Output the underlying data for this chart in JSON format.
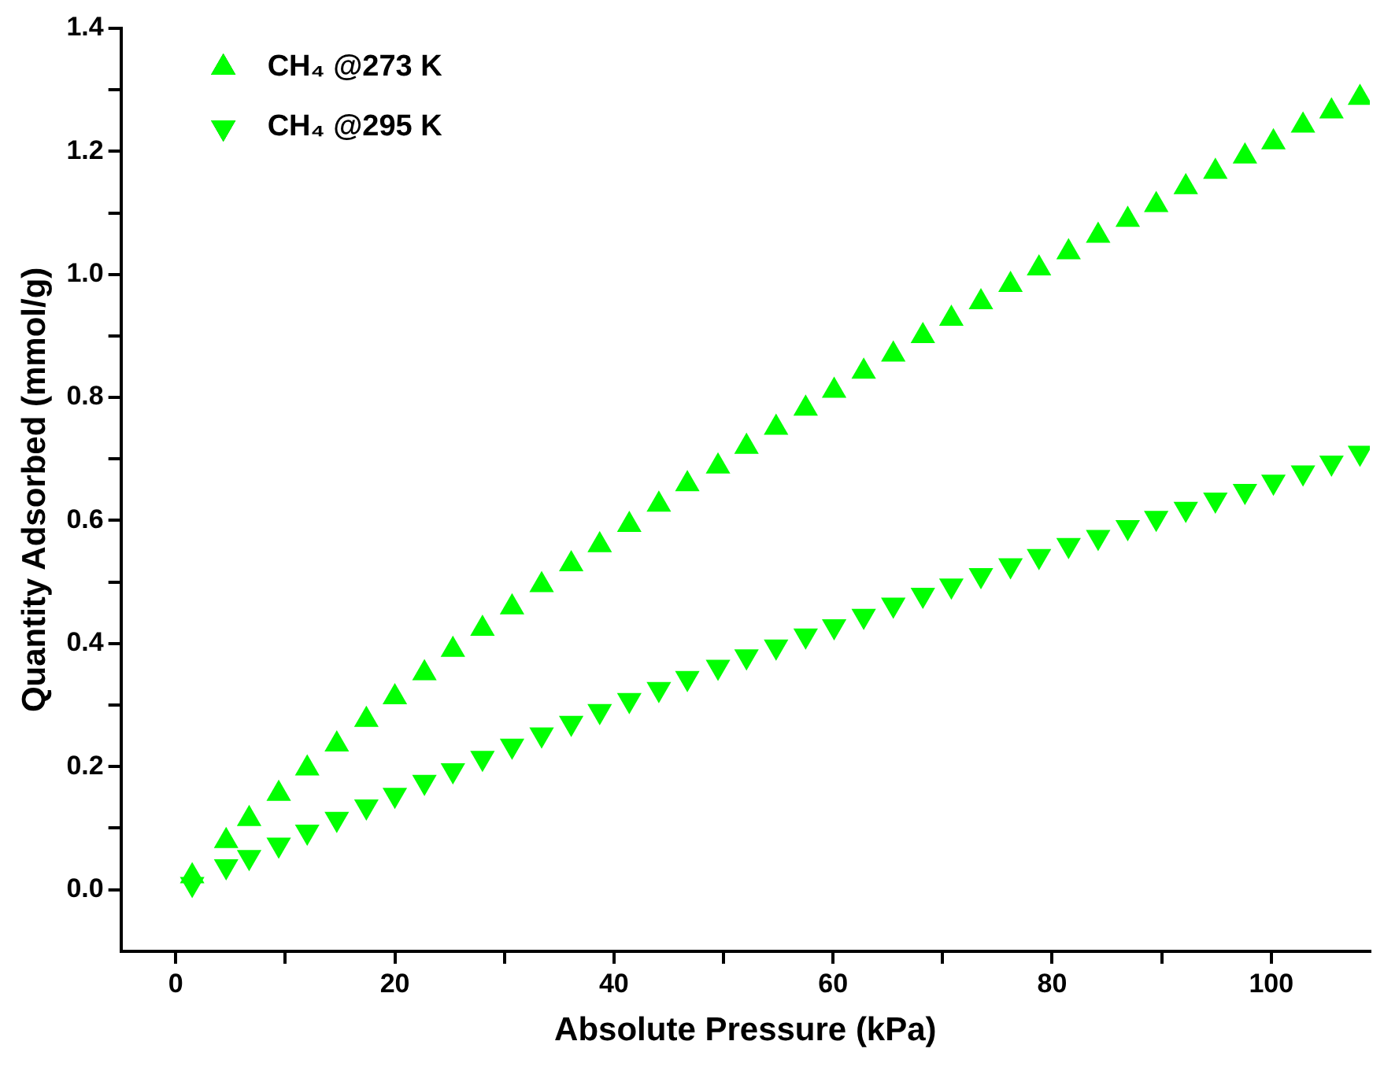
{
  "chart_data": {
    "type": "scatter",
    "xlabel": "Absolute Pressure (kPa)",
    "ylabel": "Quantity Adsorbed (mmol/g)",
    "x": [
      1.5,
      4.6,
      6.7,
      9.4,
      12.0,
      14.7,
      17.4,
      20.0,
      22.7,
      25.3,
      28.0,
      30.7,
      33.4,
      36.1,
      38.7,
      41.4,
      44.1,
      46.7,
      49.5,
      52.1,
      54.8,
      57.5,
      60.1,
      62.8,
      65.5,
      68.2,
      70.8,
      73.5,
      76.2,
      78.8,
      81.5,
      84.2,
      86.9,
      89.5,
      92.2,
      94.9,
      97.6,
      100.2,
      102.9,
      105.5,
      108.1
    ],
    "series": [
      {
        "name": "CH₄ @273 K",
        "color": "#00ff00",
        "marker": "triangle",
        "values": [
          0.022,
          0.079,
          0.115,
          0.156,
          0.197,
          0.236,
          0.276,
          0.313,
          0.352,
          0.39,
          0.424,
          0.459,
          0.495,
          0.529,
          0.56,
          0.593,
          0.626,
          0.659,
          0.688,
          0.72,
          0.751,
          0.782,
          0.811,
          0.842,
          0.87,
          0.9,
          0.928,
          0.955,
          0.983,
          1.01,
          1.036,
          1.063,
          1.089,
          1.113,
          1.142,
          1.167,
          1.192,
          1.215,
          1.242,
          1.265,
          1.287
        ]
      },
      {
        "name": "CH₄ @295 K",
        "color": "#00ff00",
        "marker": "triangle-down",
        "values": [
          0.009,
          0.038,
          0.053,
          0.073,
          0.094,
          0.115,
          0.135,
          0.154,
          0.175,
          0.194,
          0.214,
          0.234,
          0.252,
          0.271,
          0.29,
          0.308,
          0.326,
          0.344,
          0.362,
          0.379,
          0.395,
          0.413,
          0.428,
          0.445,
          0.463,
          0.479,
          0.494,
          0.511,
          0.527,
          0.542,
          0.56,
          0.573,
          0.589,
          0.604,
          0.619,
          0.634,
          0.648,
          0.663,
          0.678,
          0.694,
          0.71
        ]
      }
    ],
    "xlim": [
      -5,
      109
    ],
    "xticks": [
      0,
      {
        "value": 10,
        "label": null
      },
      20,
      {
        "value": 30,
        "label": null
      },
      40,
      {
        "value": 50,
        "label": null
      },
      60,
      {
        "value": 70,
        "label": null
      },
      80,
      {
        "value": 90,
        "label": null
      },
      100
    ],
    "ylim": [
      -0.1,
      1.4
    ],
    "yticks": [
      {
        "value": 0,
        "label": "0.0"
      },
      {
        "value": 0.1,
        "label": null
      },
      0.2,
      {
        "value": 0.3,
        "label": null
      },
      0.4,
      {
        "value": 0.5,
        "label": null
      },
      0.6,
      {
        "value": 0.7,
        "label": null
      },
      0.8,
      {
        "value": 0.9,
        "label": null
      },
      {
        "value": 1,
        "label": "1.0"
      },
      {
        "value": 1.1,
        "label": null
      },
      1.2,
      {
        "value": 1.3,
        "label": null
      },
      1.4
    ],
    "grid": false,
    "legend": "top left"
  }
}
